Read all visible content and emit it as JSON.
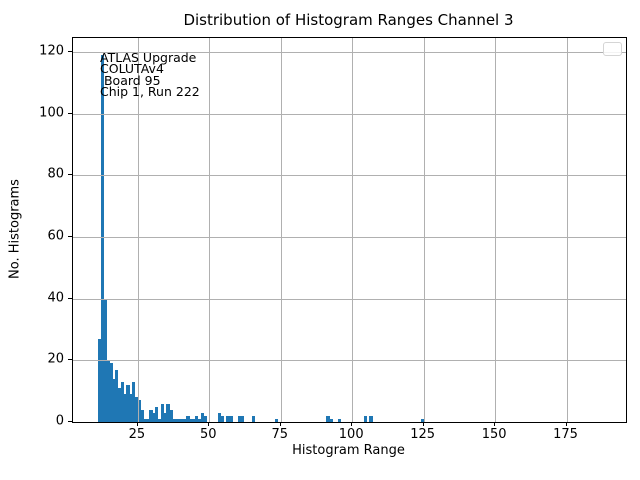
{
  "title": "Distribution of Histogram Ranges Channel 3",
  "chart_data": {
    "type": "bar",
    "subtype": "histogram",
    "title": "Distribution of Histogram Ranges Channel 3",
    "xlabel": "Histogram Range",
    "ylabel": "No. Histograms",
    "xlim": [
      2.3,
      195.8
    ],
    "ylim": [
      0,
      124.6
    ],
    "xticks": [
      25,
      50,
      75,
      100,
      125,
      150,
      175
    ],
    "yticks": [
      0,
      20,
      40,
      60,
      80,
      100,
      120
    ],
    "grid": true,
    "grid_over_bars": true,
    "bin_width": 1,
    "bins": [
      [
        11,
        27
      ],
      [
        12,
        119
      ],
      [
        13,
        40
      ],
      [
        14,
        20
      ],
      [
        15,
        19
      ],
      [
        16,
        14
      ],
      [
        17,
        17
      ],
      [
        18,
        11
      ],
      [
        19,
        13
      ],
      [
        20,
        9
      ],
      [
        21,
        12
      ],
      [
        22,
        9
      ],
      [
        23,
        13
      ],
      [
        24,
        8
      ],
      [
        25,
        7
      ],
      [
        26,
        4
      ],
      [
        27,
        1
      ],
      [
        28,
        1
      ],
      [
        29,
        4
      ],
      [
        30,
        3
      ],
      [
        31,
        5
      ],
      [
        32,
        1
      ],
      [
        33,
        6
      ],
      [
        34,
        3
      ],
      [
        35,
        6
      ],
      [
        36,
        4
      ],
      [
        37,
        1
      ],
      [
        38,
        1
      ],
      [
        39,
        1
      ],
      [
        40,
        1
      ],
      [
        41,
        1
      ],
      [
        42,
        2
      ],
      [
        43,
        1
      ],
      [
        44,
        1
      ],
      [
        45,
        2
      ],
      [
        46,
        1
      ],
      [
        47,
        3
      ],
      [
        48,
        2
      ],
      [
        53,
        3
      ],
      [
        54,
        2
      ],
      [
        56,
        2
      ],
      [
        57,
        2
      ],
      [
        60,
        2
      ],
      [
        61,
        2
      ],
      [
        65,
        2
      ],
      [
        73,
        1
      ],
      [
        91,
        2
      ],
      [
        92,
        1
      ],
      [
        95,
        1
      ],
      [
        104,
        2
      ],
      [
        106,
        2
      ],
      [
        124,
        1
      ]
    ],
    "annotation": {
      "lines": [
        "ATLAS Upgrade",
        "COLUTAv4",
        " Board 95",
        "Chip 1, Run 222"
      ]
    },
    "legend": {
      "present": true,
      "entries": []
    },
    "colors": {
      "bar": "#1f77b4",
      "grid": "#b0b0b0",
      "spine": "#000000",
      "text": "#000000",
      "legend_border": "#d5d5d5"
    }
  }
}
